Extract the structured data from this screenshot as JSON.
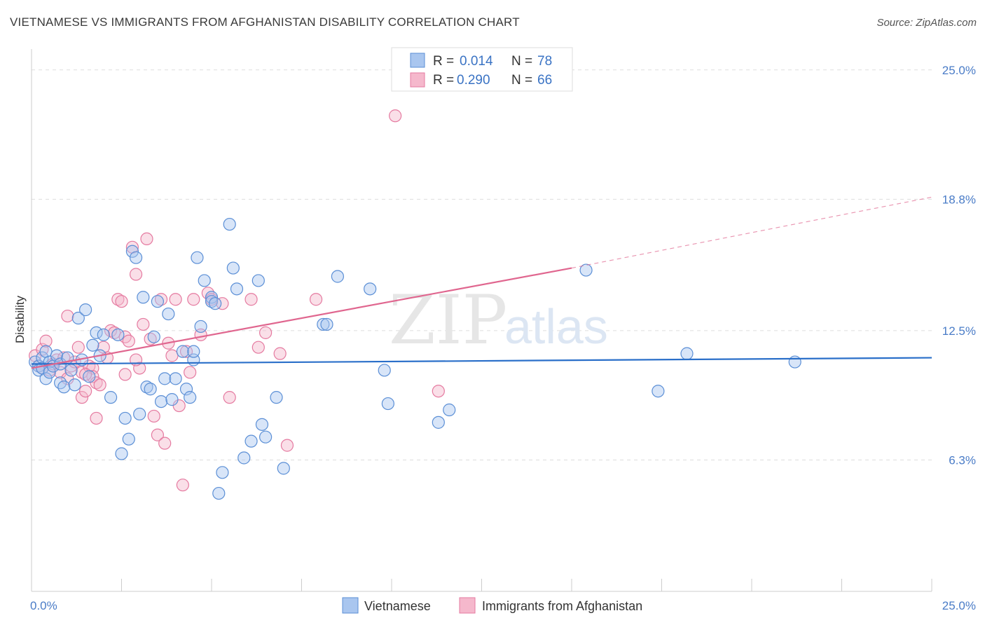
{
  "header": {
    "title": "VIETNAMESE VS IMMIGRANTS FROM AFGHANISTAN DISABILITY CORRELATION CHART",
    "source": "Source: ZipAtlas.com"
  },
  "watermark": {
    "zip": "ZIP",
    "atlas": "atlas"
  },
  "legend": {
    "rows": [
      {
        "r_label": "R =",
        "r_value": "0.014",
        "n_label": "N =",
        "n_value": "78"
      },
      {
        "r_label": "R =",
        "r_value": "0.290",
        "n_label": "N =",
        "n_value": "66"
      }
    ]
  },
  "colors": {
    "blue_fill": "#a9c6ef",
    "blue_stroke": "#5b8fd6",
    "blue_line": "#2a6fc9",
    "pink_fill": "#f5b8cc",
    "pink_stroke": "#e57aa0",
    "pink_line": "#e0668f",
    "grid": "#dddddd",
    "tick_text": "#4a7cc7"
  },
  "chart_data": {
    "type": "scatter",
    "title": "VIETNAMESE VS IMMIGRANTS FROM AFGHANISTAN DISABILITY CORRELATION CHART",
    "xlabel": "",
    "ylabel": "Disability",
    "xlim": [
      0,
      25
    ],
    "ylim": [
      0,
      26
    ],
    "x_tick_labels": [
      "0.0%",
      "25.0%"
    ],
    "y_ticks": [
      6.3,
      12.5,
      18.8,
      25.0
    ],
    "y_tick_labels": [
      "6.3%",
      "12.5%",
      "18.8%",
      "25.0%"
    ],
    "legend_position": "top-center",
    "series": [
      {
        "name": "Vietnamese",
        "r": 0.014,
        "n": 78,
        "trend": {
          "x": [
            0,
            25
          ],
          "y": [
            10.9,
            11.2
          ],
          "dashed_from": null
        },
        "points": [
          [
            0.1,
            11.0
          ],
          [
            0.2,
            10.8
          ],
          [
            0.2,
            10.6
          ],
          [
            0.3,
            11.2
          ],
          [
            0.3,
            10.7
          ],
          [
            0.4,
            11.5
          ],
          [
            0.4,
            10.2
          ],
          [
            0.5,
            11.0
          ],
          [
            0.5,
            10.5
          ],
          [
            0.6,
            10.8
          ],
          [
            0.7,
            11.3
          ],
          [
            0.8,
            10.9
          ],
          [
            0.8,
            10.0
          ],
          [
            0.9,
            9.8
          ],
          [
            1.0,
            11.2
          ],
          [
            1.1,
            10.6
          ],
          [
            1.2,
            9.9
          ],
          [
            1.3,
            13.1
          ],
          [
            1.4,
            11.1
          ],
          [
            1.5,
            13.5
          ],
          [
            1.6,
            10.3
          ],
          [
            1.7,
            11.8
          ],
          [
            1.8,
            12.4
          ],
          [
            1.9,
            11.3
          ],
          [
            2.0,
            12.3
          ],
          [
            2.2,
            9.3
          ],
          [
            2.4,
            12.3
          ],
          [
            2.5,
            6.6
          ],
          [
            2.6,
            8.3
          ],
          [
            2.7,
            7.3
          ],
          [
            2.8,
            16.3
          ],
          [
            2.9,
            16.0
          ],
          [
            3.0,
            8.5
          ],
          [
            3.1,
            14.1
          ],
          [
            3.2,
            9.8
          ],
          [
            3.3,
            9.7
          ],
          [
            3.4,
            12.2
          ],
          [
            3.5,
            13.9
          ],
          [
            3.6,
            9.1
          ],
          [
            3.7,
            10.2
          ],
          [
            3.8,
            13.3
          ],
          [
            3.9,
            9.2
          ],
          [
            4.0,
            10.2
          ],
          [
            4.2,
            11.5
          ],
          [
            4.3,
            9.7
          ],
          [
            4.4,
            9.3
          ],
          [
            4.5,
            11.1
          ],
          [
            4.5,
            11.5
          ],
          [
            4.6,
            16.0
          ],
          [
            4.7,
            12.7
          ],
          [
            4.8,
            14.9
          ],
          [
            5.0,
            14.1
          ],
          [
            5.0,
            13.9
          ],
          [
            5.1,
            13.8
          ],
          [
            5.2,
            4.7
          ],
          [
            5.3,
            5.7
          ],
          [
            5.5,
            17.6
          ],
          [
            5.6,
            15.5
          ],
          [
            5.7,
            14.5
          ],
          [
            5.9,
            6.4
          ],
          [
            6.1,
            7.2
          ],
          [
            6.3,
            14.9
          ],
          [
            6.4,
            8.0
          ],
          [
            6.5,
            7.4
          ],
          [
            6.8,
            9.3
          ],
          [
            7.0,
            5.9
          ],
          [
            8.1,
            12.8
          ],
          [
            8.2,
            12.8
          ],
          [
            8.5,
            15.1
          ],
          [
            9.4,
            14.5
          ],
          [
            9.8,
            10.6
          ],
          [
            9.9,
            9.0
          ],
          [
            11.3,
            8.1
          ],
          [
            11.6,
            8.7
          ],
          [
            15.4,
            15.4
          ],
          [
            17.4,
            9.6
          ],
          [
            18.2,
            11.4
          ],
          [
            21.2,
            11.0
          ]
        ]
      },
      {
        "name": "Immigrants from Afghanistan",
        "r": 0.29,
        "n": 66,
        "trend": {
          "x": [
            0,
            15
          ],
          "y": [
            10.7,
            15.5
          ],
          "dashed_to": [
            25,
            18.9
          ]
        },
        "points": [
          [
            0.1,
            11.3
          ],
          [
            0.2,
            10.8
          ],
          [
            0.3,
            11.6
          ],
          [
            0.3,
            10.7
          ],
          [
            0.4,
            12.0
          ],
          [
            0.5,
            10.6
          ],
          [
            0.6,
            10.9
          ],
          [
            0.7,
            11.1
          ],
          [
            0.8,
            10.5
          ],
          [
            0.9,
            11.2
          ],
          [
            1.0,
            10.2
          ],
          [
            1.0,
            13.2
          ],
          [
            1.1,
            10.8
          ],
          [
            1.2,
            11.0
          ],
          [
            1.3,
            11.7
          ],
          [
            1.4,
            10.5
          ],
          [
            1.4,
            9.3
          ],
          [
            1.5,
            9.6
          ],
          [
            1.6,
            10.8
          ],
          [
            1.7,
            10.7
          ],
          [
            1.7,
            10.3
          ],
          [
            1.8,
            10.0
          ],
          [
            1.8,
            8.3
          ],
          [
            1.9,
            9.9
          ],
          [
            2.0,
            11.7
          ],
          [
            2.1,
            11.2
          ],
          [
            2.2,
            12.5
          ],
          [
            2.3,
            12.4
          ],
          [
            2.4,
            14.0
          ],
          [
            2.5,
            13.9
          ],
          [
            2.6,
            12.2
          ],
          [
            2.6,
            10.4
          ],
          [
            2.7,
            12.0
          ],
          [
            2.8,
            16.5
          ],
          [
            2.9,
            15.2
          ],
          [
            3.0,
            10.7
          ],
          [
            3.1,
            12.8
          ],
          [
            3.2,
            16.9
          ],
          [
            3.3,
            12.1
          ],
          [
            3.4,
            8.4
          ],
          [
            3.5,
            7.5
          ],
          [
            3.6,
            14.0
          ],
          [
            3.7,
            7.1
          ],
          [
            3.8,
            11.9
          ],
          [
            3.9,
            11.3
          ],
          [
            4.0,
            14.0
          ],
          [
            4.1,
            8.9
          ],
          [
            4.2,
            5.1
          ],
          [
            4.3,
            11.5
          ],
          [
            4.4,
            10.5
          ],
          [
            4.5,
            14.0
          ],
          [
            4.7,
            12.3
          ],
          [
            4.9,
            14.3
          ],
          [
            5.0,
            14.0
          ],
          [
            5.3,
            13.8
          ],
          [
            5.5,
            9.3
          ],
          [
            6.1,
            14.0
          ],
          [
            6.3,
            11.7
          ],
          [
            6.5,
            12.4
          ],
          [
            6.9,
            11.4
          ],
          [
            7.1,
            7.0
          ],
          [
            7.9,
            14.0
          ],
          [
            10.1,
            22.8
          ],
          [
            11.3,
            9.6
          ],
          [
            1.5,
            10.4
          ],
          [
            2.9,
            11.1
          ]
        ]
      }
    ]
  },
  "bottom_legend": {
    "items": [
      "Vietnamese",
      "Immigrants from Afghanistan"
    ]
  }
}
